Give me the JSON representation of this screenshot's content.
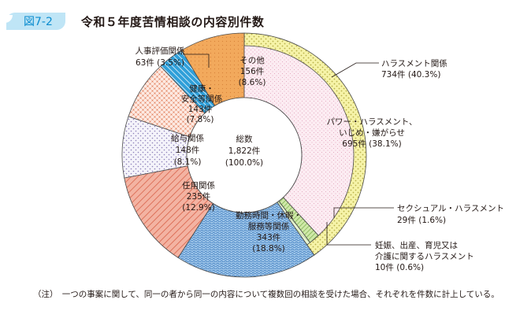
{
  "figure": {
    "number": "図7-2",
    "title": "令和５年度苦情相談の内容別件数",
    "note": "（注）　一つの事案に関して、同一の者から同一の内容について複数回の相談を受けた場合、それぞれを件数に計上している。"
  },
  "chart_data": {
    "type": "pie",
    "variant": "nested-donut",
    "center": {
      "title": "総数",
      "count": "1,822件",
      "percent": "(100.0%)"
    },
    "total": 1822,
    "outer_ring": [
      {
        "label": "ハラスメント関係",
        "value": 734,
        "count": "734件",
        "percent": "(40.3%)",
        "color": "#f3ef9a"
      },
      {
        "label": "勤務時間・休暇・服務等関係",
        "value": 343,
        "count": "343件",
        "percent": "(18.8%)",
        "color": "#7fb2de"
      },
      {
        "label": "任用関係",
        "value": 235,
        "count": "235件",
        "percent": "(12.9%)",
        "color": "#ee9f8b"
      },
      {
        "label": "給与関係",
        "value": 148,
        "count": "148件",
        "percent": "(8.1%)",
        "color": "#f2f0f8"
      },
      {
        "label": "健康・安全等関係",
        "value": 143,
        "count": "143件",
        "percent": "(7.8%)",
        "color": "#fbe7df"
      },
      {
        "label": "人事評価関係",
        "value": 63,
        "count": "63件",
        "percent": "(3.5%)",
        "color": "#3fa8db"
      },
      {
        "label": "その他",
        "value": 156,
        "count": "156件",
        "percent": "(8.6%)",
        "color": "#f0a85a"
      }
    ],
    "inner_ring": [
      {
        "label": "パワー・ハラスメント、いじめ・嫌がらせ",
        "value": 695,
        "count": "695件",
        "percent": "(38.1%)",
        "color": "#fbe6ef"
      },
      {
        "label": "セクシュアル・ハラスメント",
        "value": 29,
        "count": "29件",
        "percent": "(1.6%)",
        "color": "#b8dc8c"
      },
      {
        "label": "妊娠、出産、育児又は介護に関するハラスメント",
        "value": 10,
        "count": "10件",
        "percent": "(0.6%)",
        "color": "#d9ecc0"
      }
    ]
  }
}
